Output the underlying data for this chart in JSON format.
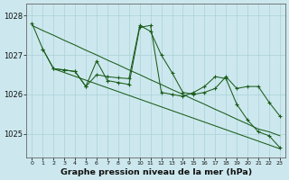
{
  "background_color": "#cce8ee",
  "grid_color": "#aad0d8",
  "line_color": "#1a5c1a",
  "xlabel": "Graphe pression niveau de la mer (hPa)",
  "ylim": [
    1024.4,
    1028.3
  ],
  "xlim": [
    -0.5,
    23.5
  ],
  "yticks": [
    1025,
    1026,
    1027,
    1028
  ],
  "series1_x": [
    0,
    1,
    2,
    3,
    4,
    5,
    6,
    7,
    8,
    9,
    10,
    11,
    12,
    13,
    14,
    15,
    16,
    17,
    18,
    19,
    20,
    21,
    22,
    23
  ],
  "series1_y": [
    1027.8,
    1027.15,
    1026.65,
    1026.62,
    1026.58,
    1026.2,
    1026.5,
    1026.45,
    1026.42,
    1026.4,
    1027.75,
    1027.6,
    1027.0,
    1026.55,
    1026.05,
    1026.0,
    1026.05,
    1026.15,
    1026.45,
    1026.15,
    1026.2,
    1026.2,
    1025.8,
    1025.45
  ],
  "series2_x": [
    0,
    1,
    2,
    3,
    4,
    5,
    6,
    7,
    8,
    9,
    10,
    11,
    12,
    13,
    14,
    15,
    16,
    17,
    18,
    19,
    20,
    21,
    22,
    23
  ],
  "series2_y": [
    1027.75,
    1027.62,
    1027.5,
    1027.37,
    1027.25,
    1027.12,
    1027.0,
    1026.87,
    1026.75,
    1026.62,
    1026.5,
    1026.37,
    1026.25,
    1026.12,
    1026.0,
    1025.87,
    1025.75,
    1025.62,
    1025.5,
    1025.37,
    1025.25,
    1025.12,
    1025.05,
    1024.95
  ],
  "series3_x": [
    1,
    2,
    3,
    4,
    5,
    6,
    7,
    8,
    9,
    10,
    11,
    12,
    13,
    14,
    15,
    16,
    17,
    18,
    19,
    20,
    21,
    22,
    23
  ],
  "series3_y": [
    1027.15,
    1026.65,
    1026.62,
    1026.58,
    1026.2,
    1026.85,
    1026.35,
    1026.3,
    1026.25,
    1027.7,
    1027.75,
    1026.05,
    1026.0,
    1025.95,
    1026.05,
    1026.2,
    1026.45,
    1026.4,
    1025.75,
    1025.35,
    1025.05,
    1024.95,
    1024.65
  ],
  "series4_x": [
    2,
    23
  ],
  "series4_y": [
    1026.65,
    1024.62
  ]
}
